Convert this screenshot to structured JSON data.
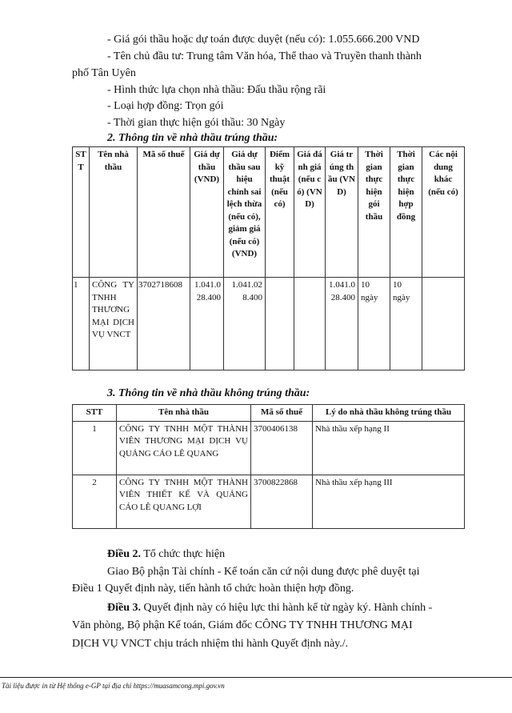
{
  "lines": {
    "l1": "- Giá gói thầu hoặc dự toán được duyệt (nếu có): 1.055.666.200 VND",
    "l2": "- Tên chủ đầu tư: Trung tâm Văn hóa, Thể thao và Truyền thanh thành",
    "l2b": "phố Tân Uyên",
    "l3": "- Hình thức lựa chọn nhà thầu: Đấu thầu rộng rãi",
    "l4": "- Loại hợp đồng: Trọn gói",
    "l5": "- Thời gian thực hiện gói thầu: 30 Ngày"
  },
  "section2": {
    "title": "2. Thông tin về nhà thầu trúng thầu:",
    "headers": [
      "STT",
      "Tên nhà thầu",
      "Mã số thuế",
      "Giá dự thầu (VND)",
      "Giá dự thầu sau hiệu chỉnh sai lệch thừa (nếu có), giảm giá (nếu có) (VND)",
      "Điểm kỹ thuật (nếu có)",
      "Giá đánh giá (nếu có) (VND)",
      "Giá trúng thầu (VND)",
      "Thời gian thực hiện gói thầu",
      "Thời gian thực hiện hợp đồng",
      "Các nội dung khác (nếu có)"
    ],
    "rows": [
      [
        "1",
        "CÔNG TY TNHH THƯƠNG MẠI DỊCH VỤ VNCT",
        "3702718608",
        "1.041.028.400",
        "1.041.028.400",
        "",
        "",
        "1.041.028.400",
        "10 ngày",
        "10 ngày",
        ""
      ]
    ]
  },
  "section3": {
    "title": "3. Thông tin về nhà thầu không trúng thầu:",
    "headers": [
      "STT",
      "Tên nhà thầu",
      "Mã số thuế",
      "Lý do nhà thầu không trúng thầu"
    ],
    "rows": [
      [
        "1",
        "CÔNG TY TNHH MỘT THÀNH VIÊN THƯƠNG MẠI DỊCH VỤ QUẢNG CÁO LÊ QUANG",
        "3700406138",
        "Nhà thầu xếp hạng II"
      ],
      [
        "2",
        "CÔNG TY TNHH MỘT THÀNH VIÊN THIẾT KẾ VÀ QUẢNG CÁO LÊ QUANG LỢI",
        "3700822868",
        "Nhà thầu xếp hạng III"
      ]
    ]
  },
  "article2": {
    "label": "Điều 2.",
    "title": " Tổ chức thực hiện",
    "body1": "Giao Bộ phận Tài chính - Kế toán căn cứ nội dung được phê duyệt tại",
    "body2": "Điều 1 Quyết định này, tiến hành tổ chức hoàn thiện hợp đồng."
  },
  "article3": {
    "label": "Điều 3.",
    "body1": " Quyết định này có hiệu lực thi hành kể từ ngày ký. Hành chính -",
    "body2": "Văn phòng, Bộ phận Kế toán, Giám đốc CÔNG TY TNHH THƯƠNG MẠI",
    "body3": "DỊCH VỤ VNCT chịu trách nhiệm thi hành Quyết định này./."
  },
  "footer": "Tài liệu được in từ Hệ thống e-GP tại địa chỉ https://muasamcong.mpi.gov.vn"
}
